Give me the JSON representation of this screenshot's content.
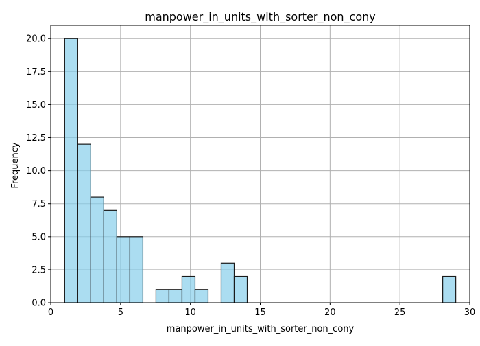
{
  "chart_data": {
    "type": "bar",
    "title": "manpower_in_units_with_sorter_non_cony",
    "xlabel": "manpower_in_units_with_sorter_non_cony",
    "ylabel": "Frequency",
    "xlim": [
      0,
      30
    ],
    "ylim": [
      0,
      21
    ],
    "grid": true,
    "x_ticks": [
      0,
      5,
      10,
      15,
      20,
      25,
      30
    ],
    "x_tick_labels": [
      "0",
      "5",
      "10",
      "15",
      "20",
      "25",
      "30"
    ],
    "y_ticks": [
      0,
      2.5,
      5,
      7.5,
      10,
      12.5,
      15,
      17.5,
      20
    ],
    "y_tick_labels": [
      "0.0",
      "2.5",
      "5.0",
      "7.5",
      "10.0",
      "12.5",
      "15.0",
      "17.5",
      "20.0"
    ],
    "bin_edges": [
      1.0,
      1.9333,
      2.8667,
      3.8,
      4.7333,
      5.6667,
      6.6,
      7.5333,
      8.4667,
      9.4,
      10.3333,
      11.2667,
      12.2,
      13.1333,
      14.0667,
      15.0,
      15.9333,
      16.8667,
      17.8,
      18.7333,
      19.6667,
      20.6,
      21.5333,
      22.4667,
      23.4,
      24.3333,
      25.2667,
      26.2,
      27.1333,
      28.0667,
      29.0
    ],
    "counts": [
      20,
      12,
      8,
      7,
      5,
      5,
      0,
      1,
      1,
      2,
      1,
      0,
      3,
      2,
      0,
      0,
      0,
      0,
      0,
      0,
      0,
      0,
      0,
      0,
      0,
      0,
      0,
      0,
      0,
      2
    ],
    "bar_color": "#87ceeb",
    "bar_edge_color": "#1a1a1a"
  }
}
